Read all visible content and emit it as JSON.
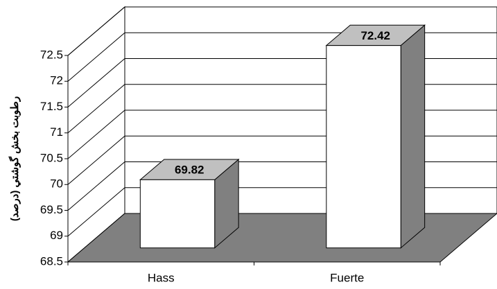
{
  "chart_data": {
    "type": "bar3d",
    "y_axis_label": "رطوبت بخش گوشتي (درصد)",
    "categories": [
      "Hass",
      "Fuerte"
    ],
    "values": [
      69.82,
      72.42
    ],
    "value_labels": [
      "69.82",
      "72.42"
    ],
    "ylim": [
      68.5,
      72.5
    ],
    "yticks": [
      68.5,
      69,
      69.5,
      70,
      70.5,
      71,
      71.5,
      72,
      72.5
    ],
    "grid": true,
    "colors": {
      "front": "#ffffff",
      "top": "#c0c0c0",
      "side": "#808080",
      "floor": "#808080"
    }
  }
}
